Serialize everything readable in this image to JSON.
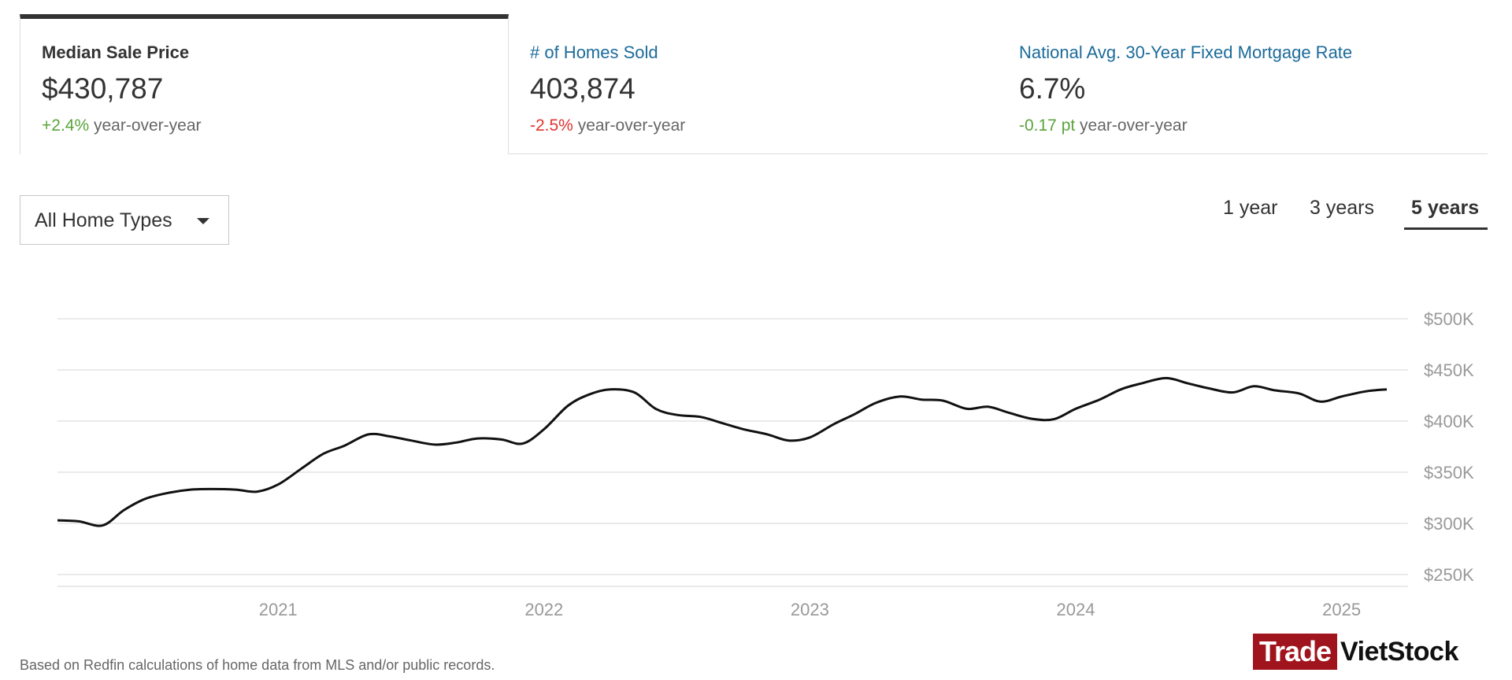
{
  "tabs": [
    {
      "title": "Median Sale Price",
      "value": "$430,787",
      "change": "+2.4%",
      "change_suffix": " year-over-year",
      "change_color": "#5aa33c"
    },
    {
      "title": "# of Homes Sold",
      "value": "403,874",
      "change": "-2.5%",
      "change_suffix": " year-over-year",
      "change_color": "#e0332f"
    },
    {
      "title": "National Avg. 30-Year Fixed Mortgage Rate",
      "value": "6.7%",
      "change": "-0.17 pt",
      "change_suffix": " year-over-year",
      "change_color": "#5aa33c"
    }
  ],
  "filter": {
    "label": "All Home Types"
  },
  "ranges": {
    "one": "1 year",
    "three": "3 years",
    "five": "5 years",
    "selected": "5 years"
  },
  "footnote": "Based on Redfin calculations of home data from MLS and/or public records.",
  "logo": {
    "part1": "Trade",
    "part2": "VietStock"
  },
  "chart_data": {
    "type": "line",
    "title": "Median Sale Price",
    "ylim": [
      240000,
      500000
    ],
    "yticks": [
      500000,
      450000,
      400000,
      350000,
      300000,
      250000
    ],
    "ytick_labels": [
      "$500K",
      "$450K",
      "$400K",
      "$350K",
      "$300K",
      "$250K"
    ],
    "xlim": [
      2020.17,
      2025.25
    ],
    "xticks": [
      2021,
      2022,
      2023,
      2024,
      2025
    ],
    "xtick_labels": [
      "2021",
      "2022",
      "2023",
      "2024",
      "2025"
    ],
    "grid": true,
    "series": [
      {
        "name": "Median Sale Price",
        "color": "#111111",
        "x": [
          2020.17,
          2020.25,
          2020.34,
          2020.42,
          2020.5,
          2020.59,
          2020.67,
          2020.75,
          2020.84,
          2020.92,
          2021.0,
          2021.09,
          2021.17,
          2021.25,
          2021.34,
          2021.42,
          2021.5,
          2021.59,
          2021.67,
          2021.75,
          2021.84,
          2021.92,
          2022.0,
          2022.09,
          2022.17,
          2022.25,
          2022.34,
          2022.42,
          2022.5,
          2022.59,
          2022.67,
          2022.75,
          2022.84,
          2022.92,
          2023.0,
          2023.09,
          2023.17,
          2023.25,
          2023.34,
          2023.42,
          2023.5,
          2023.59,
          2023.67,
          2023.75,
          2023.84,
          2023.92,
          2024.0,
          2024.09,
          2024.17,
          2024.25,
          2024.34,
          2024.42,
          2024.5,
          2024.59,
          2024.67,
          2024.75,
          2024.84,
          2024.92,
          2025.0,
          2025.09,
          2025.17
        ],
        "values": [
          303000,
          302000,
          298000,
          313000,
          324000,
          330000,
          333000,
          333500,
          333000,
          331000,
          338000,
          354000,
          368000,
          376000,
          387000,
          385000,
          381000,
          377000,
          379000,
          383000,
          382000,
          378000,
          392000,
          415000,
          426000,
          431000,
          428000,
          412000,
          406000,
          404000,
          398000,
          392000,
          387000,
          381000,
          384000,
          397000,
          407000,
          418000,
          424000,
          421000,
          420000,
          412000,
          414000,
          408000,
          402000,
          402000,
          412000,
          421000,
          431000,
          437000,
          442000,
          437000,
          432000,
          428000,
          434000,
          430000,
          427000,
          419000,
          424000,
          429000,
          431000
        ]
      }
    ]
  }
}
